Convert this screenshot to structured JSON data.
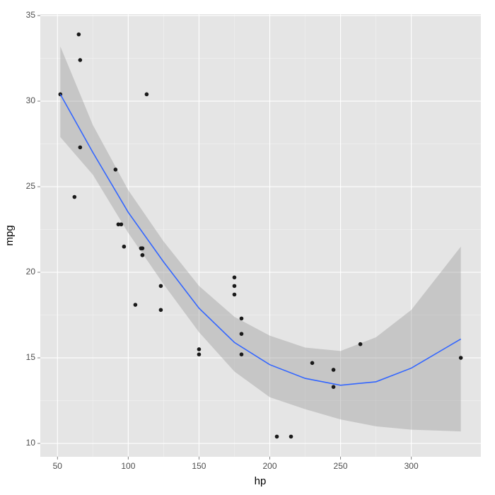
{
  "chart_data": {
    "type": "scatter",
    "x_label": "hp",
    "y_label": "mpg",
    "x": [
      110,
      110,
      93,
      110,
      175,
      105,
      245,
      62,
      95,
      123,
      123,
      180,
      180,
      180,
      205,
      215,
      230,
      66,
      52,
      65,
      97,
      150,
      150,
      245,
      175,
      66,
      91,
      113,
      264,
      175,
      335,
      109
    ],
    "values": [
      21,
      21,
      22.8,
      21.4,
      18.7,
      18.1,
      14.3,
      24.4,
      22.8,
      19.2,
      17.8,
      16.4,
      17.3,
      15.2,
      10.4,
      10.4,
      14.7,
      32.4,
      30.4,
      33.9,
      21.5,
      15.5,
      15.2,
      13.3,
      19.2,
      27.3,
      26,
      30.4,
      15.8,
      19.7,
      15,
      21.4
    ],
    "color": "#1a1a1a",
    "smooth": {
      "x": [
        52,
        75,
        100,
        125,
        150,
        175,
        200,
        225,
        250,
        275,
        300,
        335
      ],
      "values": [
        30.4,
        27.0,
        23.5,
        20.6,
        17.9,
        15.9,
        14.6,
        13.8,
        13.4,
        13.6,
        14.4,
        16.1
      ],
      "lower": [
        27.9,
        25.7,
        22.3,
        19.3,
        16.5,
        14.2,
        12.7,
        12.0,
        11.4,
        11.0,
        10.8,
        10.7
      ],
      "upper": [
        33.2,
        28.6,
        24.8,
        21.8,
        19.2,
        17.4,
        16.3,
        15.6,
        15.4,
        16.2,
        17.8,
        21.5
      ],
      "color": "#3366ff",
      "band_color": "#999999"
    },
    "xlim": [
      37.85,
      349.15
    ],
    "ylim": [
      9.225,
      35.075
    ],
    "xticks": [
      50,
      100,
      150,
      200,
      250,
      300
    ],
    "yticks": [
      10,
      15,
      20,
      25,
      30,
      35
    ],
    "grid": true
  }
}
